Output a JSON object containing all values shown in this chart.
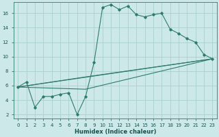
{
  "xlabel": "Humidex (Indice chaleur)",
  "bg_color": "#cce8e8",
  "grid_color": "#aacfcf",
  "line_color": "#2e7b6e",
  "xlim": [
    -0.5,
    23.5
  ],
  "ylim": [
    1.5,
    17.5
  ],
  "xticks": [
    0,
    1,
    2,
    3,
    4,
    5,
    6,
    7,
    8,
    9,
    10,
    11,
    12,
    13,
    14,
    15,
    16,
    17,
    18,
    19,
    20,
    21,
    22,
    23
  ],
  "yticks": [
    2,
    4,
    6,
    8,
    10,
    12,
    14,
    16
  ],
  "line1_x": [
    0,
    1,
    2,
    3,
    4,
    5,
    6,
    7,
    8,
    9,
    10,
    11,
    12,
    13,
    14,
    15,
    16,
    17,
    18,
    19,
    20,
    21,
    22,
    23
  ],
  "line1_y": [
    5.8,
    6.5,
    3.0,
    4.5,
    4.5,
    4.8,
    5.0,
    2.0,
    4.5,
    9.2,
    16.8,
    17.2,
    16.5,
    17.0,
    15.8,
    15.5,
    15.8,
    16.0,
    13.8,
    13.2,
    12.5,
    12.0,
    10.3,
    9.7
  ],
  "line2_x": [
    0,
    23
  ],
  "line2_y": [
    5.8,
    9.7
  ],
  "line3_x": [
    0,
    8,
    23
  ],
  "line3_y": [
    5.8,
    7.2,
    9.7
  ],
  "line4_x": [
    0,
    8,
    23
  ],
  "line4_y": [
    5.8,
    5.5,
    9.7
  ]
}
